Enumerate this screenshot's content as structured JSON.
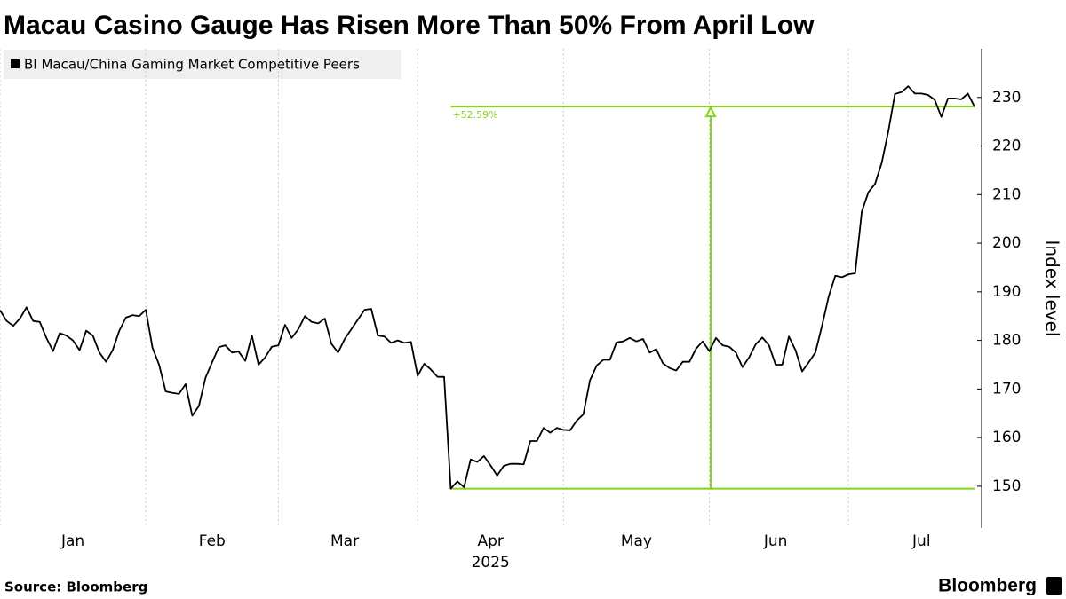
{
  "chart_data": {
    "type": "line",
    "title": "Macau Casino Gauge Has Risen More Than 50% From April Low",
    "x_sublabel": "2025",
    "y_axis_label": "Index level",
    "source": "Source: Bloomberg",
    "brand": "Bloomberg",
    "annotation": {
      "text": "+52.59%",
      "color": "#86d31a"
    },
    "categories": [
      null,
      null,
      null,
      null,
      null,
      null,
      null,
      null,
      null,
      null,
      null,
      "Jan",
      null,
      null,
      null,
      null,
      null,
      null,
      null,
      null,
      null,
      null,
      null,
      null,
      null,
      null,
      null,
      null,
      null,
      null,
      null,
      null,
      "Feb",
      null,
      null,
      null,
      null,
      null,
      null,
      null,
      null,
      null,
      null,
      null,
      null,
      null,
      null,
      null,
      null,
      null,
      null,
      null,
      "Mar",
      null,
      null,
      null,
      null,
      null,
      null,
      null,
      null,
      null,
      null,
      null,
      null,
      null,
      null,
      null,
      null,
      null,
      null,
      null,
      null,
      null,
      "Apr",
      null,
      null,
      null,
      null,
      null,
      null,
      null,
      null,
      null,
      null,
      null,
      null,
      null,
      null,
      null,
      null,
      null,
      null,
      null,
      null,
      null,
      "May",
      null,
      null,
      null,
      null,
      null,
      null,
      null,
      null,
      null,
      null,
      null,
      null,
      null,
      null,
      null,
      null,
      null,
      null,
      null,
      null,
      "Jun",
      null,
      null,
      null,
      null,
      null,
      null,
      null,
      null,
      null,
      null,
      null,
      null,
      null,
      null,
      null,
      null,
      null,
      null,
      null,
      null,
      null,
      "Jul",
      null,
      null,
      null,
      null,
      null,
      null,
      null,
      null
    ],
    "series": [
      {
        "name": "BI Macau/China Gaming Market Competitive Peers",
        "color": "#000000",
        "values": [
          186.2,
          184,
          183,
          184.5,
          186.8,
          184,
          183.8,
          180.5,
          177.8,
          181.5,
          181,
          180,
          178,
          182,
          181,
          177.5,
          175.6,
          178,
          182,
          184.7,
          185.2,
          185,
          186.3,
          178.5,
          175,
          169.5,
          169.2,
          169,
          171,
          164.5,
          166.5,
          172.3,
          175.5,
          178.6,
          179,
          177.5,
          177.7,
          175.8,
          181,
          175,
          176.5,
          178.7,
          179,
          183.2,
          180.5,
          182.3,
          185,
          183.8,
          183.5,
          184.5,
          179.3,
          177.5,
          180.3,
          182.3,
          184.3,
          186.3,
          186.5,
          181,
          180.8,
          179.5,
          180,
          179.5,
          179.7,
          172.7,
          175.2,
          174,
          172.5,
          172.5,
          149.5,
          151,
          149.8,
          155.5,
          155,
          156.2,
          154.3,
          152.2,
          154.2,
          154.6,
          154.6,
          154.5,
          159.3,
          159.3,
          162,
          161,
          162,
          161.6,
          161.5,
          163.5,
          164.8,
          171.8,
          174.8,
          176,
          176,
          179.6,
          179.8,
          180.5,
          179.8,
          180.3,
          177.5,
          178.2,
          175.3,
          174.3,
          173.8,
          175.6,
          175.6,
          178.3,
          179.8,
          177.8,
          180.5,
          179,
          178.7,
          177.5,
          174.5,
          176.5,
          179.2,
          180.6,
          179,
          175,
          175,
          180.8,
          178,
          173.6,
          175.5,
          177.5,
          183,
          189,
          193.3,
          193,
          193.6,
          193.8,
          206.5,
          210.5,
          212.2,
          216.5,
          223,
          230.7,
          231.1,
          232.3,
          230.8,
          230.8,
          230.5,
          229.5,
          226,
          229.8,
          229.8,
          229.6,
          230.8,
          228.1
        ]
      }
    ],
    "ylim": [
      141.4,
      240
    ],
    "yticks": [
      150,
      160,
      170,
      180,
      190,
      200,
      210,
      220,
      230
    ],
    "grid": true
  }
}
